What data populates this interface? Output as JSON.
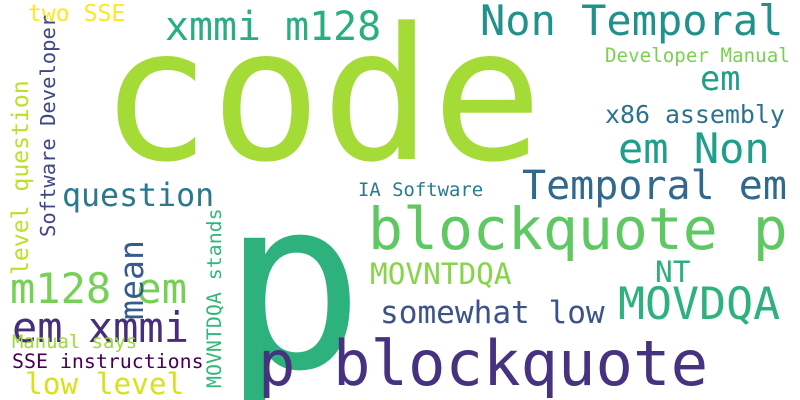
{
  "words": [
    {
      "text": "code",
      "color": "#a5db36"
    },
    {
      "text": "p",
      "color": "#2db27d"
    },
    {
      "text": "p blockquote",
      "color": "#46327e"
    },
    {
      "text": "blockquote p",
      "color": "#5ec962"
    },
    {
      "text": "Non Temporal",
      "color": "#21918c"
    },
    {
      "text": "xmmi m128",
      "color": "#28ae80"
    },
    {
      "text": "em",
      "color": "#1f9e89"
    },
    {
      "text": "em Non",
      "color": "#1f9e89"
    },
    {
      "text": "Temporal em",
      "color": "#31688e"
    },
    {
      "text": "MOVDQA",
      "color": "#2db27d"
    },
    {
      "text": "m128 em",
      "color": "#75d054"
    },
    {
      "text": "em xmmi",
      "color": "#472d7b"
    },
    {
      "text": "question",
      "color": "#2a788e"
    },
    {
      "text": "somewhat low",
      "color": "#3b528b"
    },
    {
      "text": "NT",
      "color": "#2ab07f"
    },
    {
      "text": "MOVNTDQA",
      "color": "#86d549"
    },
    {
      "text": "x86 assembly",
      "color": "#2c728e"
    },
    {
      "text": "low level",
      "color": "#d8e219"
    },
    {
      "text": "level question",
      "color": "#bddf26"
    },
    {
      "text": "mean",
      "color": "#365c8d"
    },
    {
      "text": "two SSE",
      "color": "#fde725"
    },
    {
      "text": "Developer Manual",
      "color": "#7ad151"
    },
    {
      "text": "IA Software",
      "color": "#287c8e"
    },
    {
      "text": "SSE instructions",
      "color": "#440154"
    },
    {
      "text": "Manual says",
      "color": "#9bd93c"
    },
    {
      "text": "MOVNTDQA stands",
      "color": "#35b779"
    },
    {
      "text": "Software Developer",
      "color": "#404688"
    }
  ]
}
